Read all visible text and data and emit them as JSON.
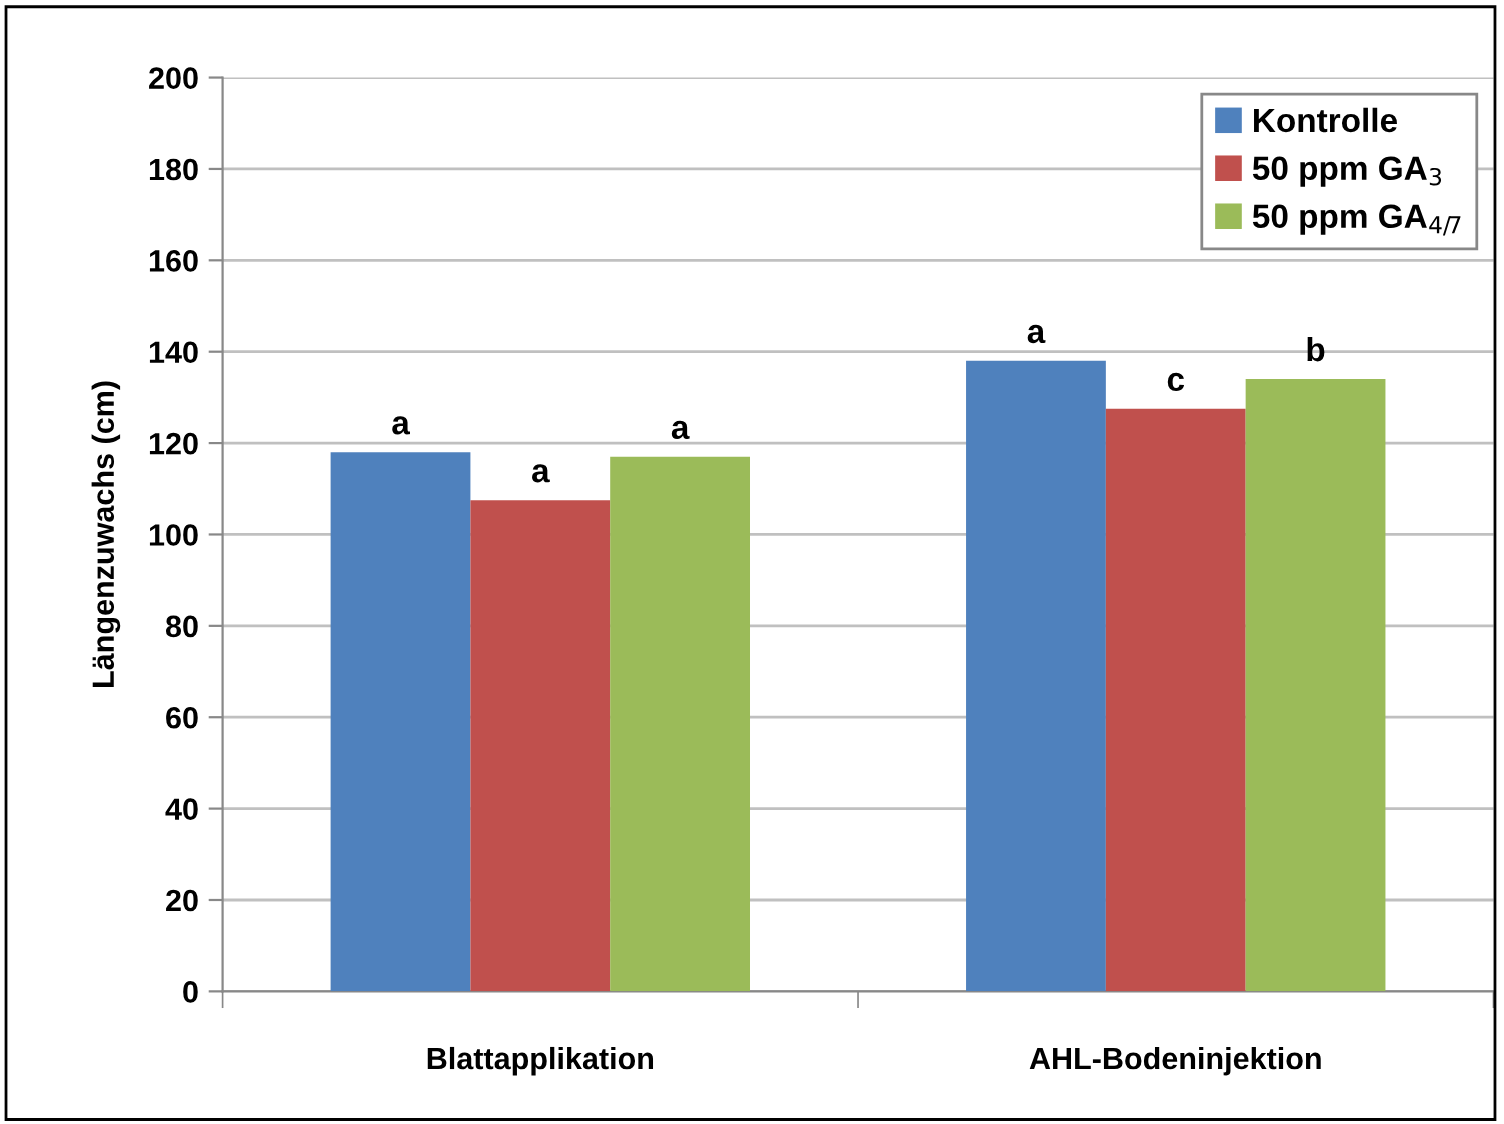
{
  "chart_data": {
    "type": "bar",
    "ylabel": "Längenzuwachs (cm)",
    "categories": [
      "Blattapplikation",
      "AHL-Bodeninjektion"
    ],
    "series": [
      {
        "name": "Kontrolle",
        "color": "#4f81bd",
        "values": [
          118,
          138
        ]
      },
      {
        "name": "50 ppm GA$_{3}$",
        "color": "#c0504d",
        "values": [
          107.5,
          127.5
        ]
      },
      {
        "name": "50 ppm GA$_{4/7}$",
        "color": "#9bbb59",
        "values": [
          117,
          134
        ]
      }
    ],
    "value_labels": [
      [
        "a",
        "a"
      ],
      [
        "a",
        "c"
      ],
      [
        "a",
        "b"
      ]
    ],
    "ylim": [
      0,
      200
    ],
    "yticks": [
      0,
      20,
      40,
      60,
      80,
      100,
      120,
      140,
      160,
      180,
      200
    ],
    "grid": "y",
    "legend": "top right"
  }
}
